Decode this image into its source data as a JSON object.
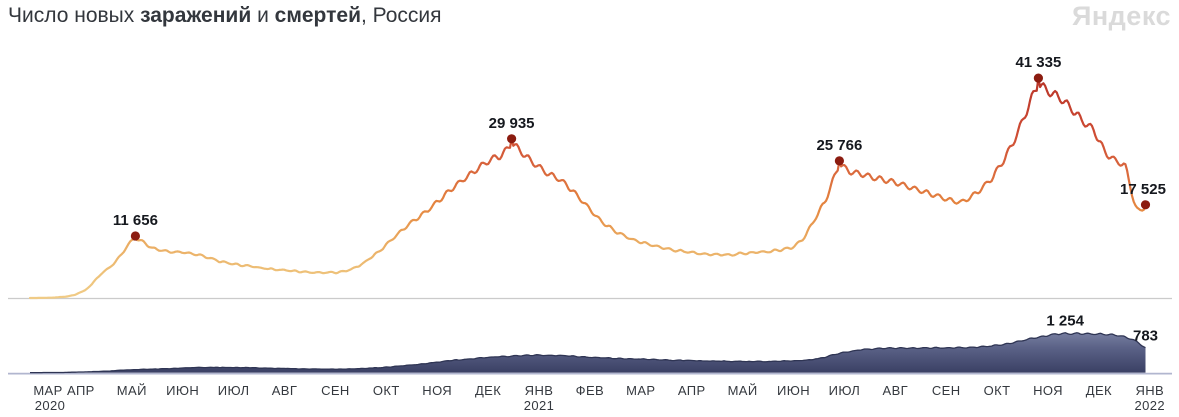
{
  "header": {
    "title_prefix": "Число новых ",
    "title_infections_word": "заражений",
    "title_conjunction": " и ",
    "title_deaths_word": "смертей",
    "title_suffix": ", Россия",
    "logo_text": "Яндекс"
  },
  "colors": {
    "title_text": "#33373d",
    "accent_orange": "#e8823c",
    "logo_gray": "#dadada",
    "axis_label": "#35393f",
    "annotation_text": "#15181e",
    "peak_dot": "#8b1c10",
    "infections_line_low": "#f0cb86",
    "infections_line_mid": "#e5863f",
    "infections_line_high": "#ab2d20",
    "deaths_fill_top": "#9199b8",
    "deaths_fill_bottom": "#3b4165",
    "deaths_outline": "#2f3554",
    "infections_baseline": "#cbcbcb",
    "deaths_baseline": "#b1b6cf"
  },
  "chart_data": {
    "type": "line",
    "title": "Число новых заражений и смертей, Россия",
    "region": "Россия",
    "x_axis": {
      "start": "2020-03",
      "end": "2022-01",
      "months": [
        {
          "label": "МАР",
          "year": "2020"
        },
        {
          "label": "АПР"
        },
        {
          "label": "МАЙ"
        },
        {
          "label": "ИЮН"
        },
        {
          "label": "ИЮЛ"
        },
        {
          "label": "АВГ"
        },
        {
          "label": "СЕН"
        },
        {
          "label": "ОКТ"
        },
        {
          "label": "НОЯ"
        },
        {
          "label": "ДЕК"
        },
        {
          "label": "ЯНВ",
          "year": "2021"
        },
        {
          "label": "ФЕВ"
        },
        {
          "label": "МАР"
        },
        {
          "label": "АПР"
        },
        {
          "label": "МАЙ"
        },
        {
          "label": "ИЮН"
        },
        {
          "label": "ИЮЛ"
        },
        {
          "label": "АВГ"
        },
        {
          "label": "СЕН"
        },
        {
          "label": "ОКТ"
        },
        {
          "label": "НОЯ"
        },
        {
          "label": "ДЕК"
        },
        {
          "label": "ЯНВ",
          "year": "2022"
        }
      ]
    },
    "series": [
      {
        "name": "новые заражения",
        "style": "gradient-line",
        "ylim": [
          0,
          45000
        ],
        "keypoints": [
          [
            "2020-03-01",
            0
          ],
          [
            "2020-03-08",
            15
          ],
          [
            "2020-03-15",
            80
          ],
          [
            "2020-03-22",
            250
          ],
          [
            "2020-03-28",
            620
          ],
          [
            "2020-04-03",
            1500
          ],
          [
            "2020-04-08",
            3000
          ],
          [
            "2020-04-13",
            4900
          ],
          [
            "2020-04-18",
            6000
          ],
          [
            "2020-04-24",
            8000
          ],
          [
            "2020-04-29",
            10500
          ],
          [
            "2020-05-03",
            11656
          ],
          [
            "2020-05-08",
            10700
          ],
          [
            "2020-05-14",
            9500
          ],
          [
            "2020-05-22",
            9000
          ],
          [
            "2020-06-01",
            8800
          ],
          [
            "2020-06-12",
            8200
          ],
          [
            "2020-06-22",
            7100
          ],
          [
            "2020-07-03",
            6400
          ],
          [
            "2020-07-20",
            5700
          ],
          [
            "2020-08-05",
            5200
          ],
          [
            "2020-08-20",
            4850
          ],
          [
            "2020-09-01",
            4950
          ],
          [
            "2020-09-08",
            5350
          ],
          [
            "2020-09-16",
            6600
          ],
          [
            "2020-09-25",
            8800
          ],
          [
            "2020-10-05",
            11800
          ],
          [
            "2020-10-15",
            14600
          ],
          [
            "2020-10-25",
            17000
          ],
          [
            "2020-11-04",
            19800
          ],
          [
            "2020-11-14",
            22600
          ],
          [
            "2020-11-24",
            25000
          ],
          [
            "2020-12-02",
            26800
          ],
          [
            "2020-12-08",
            27400
          ],
          [
            "2020-12-14",
            29935
          ],
          [
            "2020-12-20",
            28100
          ],
          [
            "2020-12-27",
            26000
          ],
          [
            "2021-01-04",
            24200
          ],
          [
            "2021-01-12",
            22800
          ],
          [
            "2021-01-20",
            20500
          ],
          [
            "2021-01-28",
            17800
          ],
          [
            "2021-02-06",
            14600
          ],
          [
            "2021-02-16",
            12500
          ],
          [
            "2021-02-26",
            11000
          ],
          [
            "2021-03-10",
            10000
          ],
          [
            "2021-03-24",
            9100
          ],
          [
            "2021-04-08",
            8500
          ],
          [
            "2021-04-22",
            8300
          ],
          [
            "2021-05-06",
            8700
          ],
          [
            "2021-05-20",
            9100
          ],
          [
            "2021-05-30",
            9600
          ],
          [
            "2021-06-06",
            11200
          ],
          [
            "2021-06-13",
            15000
          ],
          [
            "2021-06-20",
            19000
          ],
          [
            "2021-06-24",
            22500
          ],
          [
            "2021-06-28",
            25766
          ],
          [
            "2021-07-04",
            24400
          ],
          [
            "2021-07-12",
            23800
          ],
          [
            "2021-07-20",
            23100
          ],
          [
            "2021-08-01",
            22200
          ],
          [
            "2021-08-12",
            21100
          ],
          [
            "2021-08-22",
            20000
          ],
          [
            "2021-09-01",
            19000
          ],
          [
            "2021-09-08",
            18300
          ],
          [
            "2021-09-14",
            19300
          ],
          [
            "2021-09-20",
            20800
          ],
          [
            "2021-09-27",
            23000
          ],
          [
            "2021-10-04",
            26500
          ],
          [
            "2021-10-10",
            30000
          ],
          [
            "2021-10-16",
            34500
          ],
          [
            "2021-10-21",
            38500
          ],
          [
            "2021-10-25",
            41335
          ],
          [
            "2021-10-31",
            39800
          ],
          [
            "2021-11-07",
            38600
          ],
          [
            "2021-11-14",
            36500
          ],
          [
            "2021-11-20",
            34200
          ],
          [
            "2021-11-27",
            32500
          ],
          [
            "2021-12-04",
            28000
          ],
          [
            "2021-12-10",
            26500
          ],
          [
            "2021-12-16",
            25500
          ],
          [
            "2021-12-19",
            21500
          ],
          [
            "2021-12-21",
            18500
          ],
          [
            "2021-12-23",
            16800
          ],
          [
            "2021-12-25",
            16900
          ],
          [
            "2021-12-28",
            17525
          ]
        ],
        "annotations": [
          {
            "label": "11 656",
            "value": 11656,
            "date": "2020-05-03",
            "dot": true
          },
          {
            "label": "29 935",
            "value": 29935,
            "date": "2020-12-14",
            "dot": true
          },
          {
            "label": "25 766",
            "value": 25766,
            "date": "2021-06-28",
            "dot": true
          },
          {
            "label": "41 335",
            "value": 41335,
            "date": "2021-10-25",
            "dot": true
          },
          {
            "label": "17 525",
            "value": 17525,
            "date": "2021-12-28",
            "dot": true
          }
        ]
      },
      {
        "name": "новые смерти",
        "style": "area",
        "ylim": [
          0,
          1700
        ],
        "keypoints": [
          [
            "2020-03-01",
            0
          ],
          [
            "2020-03-20",
            4
          ],
          [
            "2020-04-05",
            25
          ],
          [
            "2020-04-20",
            60
          ],
          [
            "2020-05-01",
            95
          ],
          [
            "2020-05-15",
            115
          ],
          [
            "2020-05-28",
            140
          ],
          [
            "2020-06-10",
            168
          ],
          [
            "2020-06-25",
            165
          ],
          [
            "2020-07-10",
            155
          ],
          [
            "2020-07-25",
            140
          ],
          [
            "2020-08-10",
            120
          ],
          [
            "2020-08-25",
            110
          ],
          [
            "2020-09-08",
            115
          ],
          [
            "2020-09-20",
            140
          ],
          [
            "2020-10-02",
            185
          ],
          [
            "2020-10-14",
            240
          ],
          [
            "2020-10-26",
            310
          ],
          [
            "2020-11-07",
            380
          ],
          [
            "2020-11-19",
            440
          ],
          [
            "2020-12-01",
            490
          ],
          [
            "2020-12-13",
            530
          ],
          [
            "2020-12-24",
            555
          ],
          [
            "2021-01-04",
            560
          ],
          [
            "2021-01-16",
            535
          ],
          [
            "2021-01-28",
            500
          ],
          [
            "2021-02-10",
            465
          ],
          [
            "2021-02-22",
            440
          ],
          [
            "2021-03-08",
            420
          ],
          [
            "2021-03-22",
            400
          ],
          [
            "2021-04-06",
            380
          ],
          [
            "2021-04-20",
            365
          ],
          [
            "2021-05-04",
            355
          ],
          [
            "2021-05-18",
            360
          ],
          [
            "2021-05-30",
            375
          ],
          [
            "2021-06-08",
            395
          ],
          [
            "2021-06-16",
            450
          ],
          [
            "2021-06-24",
            560
          ],
          [
            "2021-07-02",
            660
          ],
          [
            "2021-07-12",
            740
          ],
          [
            "2021-07-22",
            775
          ],
          [
            "2021-08-04",
            785
          ],
          [
            "2021-08-18",
            790
          ],
          [
            "2021-09-01",
            793
          ],
          [
            "2021-09-14",
            800
          ],
          [
            "2021-09-26",
            850
          ],
          [
            "2021-10-06",
            920
          ],
          [
            "2021-10-14",
            1010
          ],
          [
            "2021-10-22",
            1105
          ],
          [
            "2021-10-30",
            1180
          ],
          [
            "2021-11-04",
            1235
          ],
          [
            "2021-11-10",
            1254
          ],
          [
            "2021-11-24",
            1247
          ],
          [
            "2021-12-02",
            1235
          ],
          [
            "2021-12-09",
            1215
          ],
          [
            "2021-12-15",
            1150
          ],
          [
            "2021-12-20",
            1060
          ],
          [
            "2021-12-24",
            950
          ],
          [
            "2021-12-27",
            820
          ],
          [
            "2021-12-28",
            783
          ]
        ],
        "annotations": [
          {
            "label": "1 254",
            "value": 1254,
            "date": "2021-11-10",
            "dot": false
          },
          {
            "label": "783",
            "value": 783,
            "date": "2021-12-28",
            "dot": false
          }
        ]
      }
    ]
  }
}
